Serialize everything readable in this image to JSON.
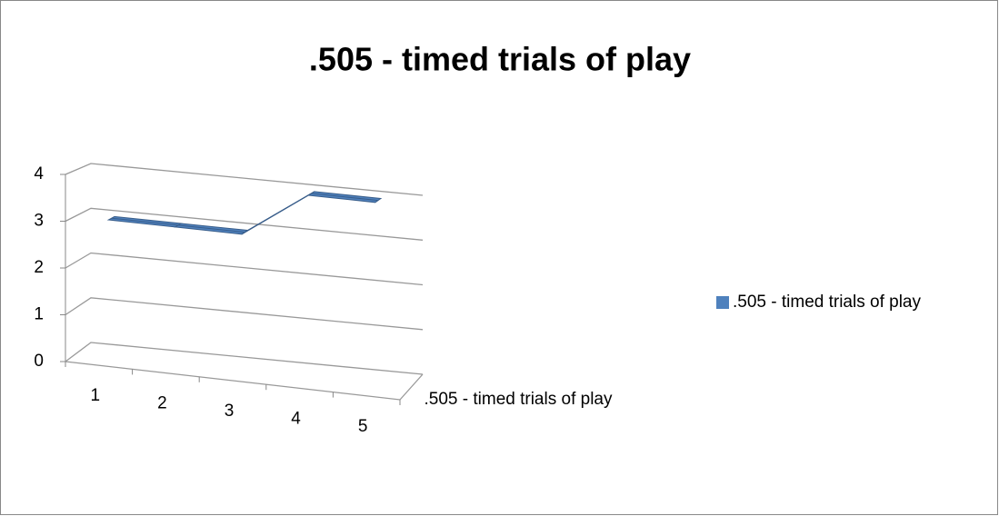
{
  "chart_data": {
    "type": "line3d",
    "title": ".505 - timed trials of play",
    "categories": [
      "1",
      "2",
      "3",
      "4",
      "5"
    ],
    "series": [
      {
        "name": ".505 - timed trials of play",
        "color": "#4f81bd",
        "values": [
          3,
          3,
          3,
          4,
          4
        ]
      }
    ],
    "depth_label": ".505 - timed trials of play",
    "ylim": [
      0,
      4
    ],
    "yticks": [
      0,
      1,
      2,
      3,
      4
    ],
    "grid": true,
    "legend": "right"
  }
}
